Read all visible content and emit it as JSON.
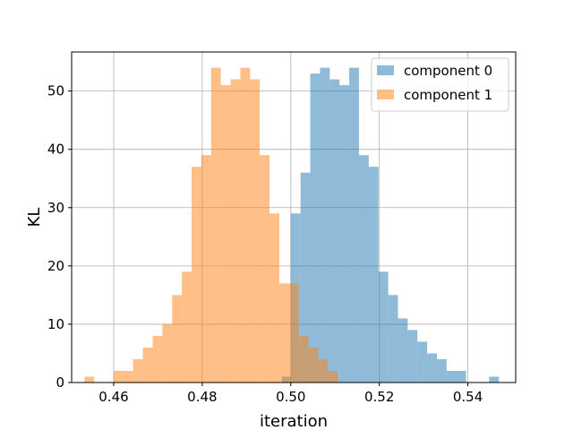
{
  "chart_data": {
    "type": "histogram",
    "xlabel": "iteration",
    "ylabel": "KL",
    "xlim": [
      0.4505,
      0.5508
    ],
    "ylim": [
      0,
      56.7
    ],
    "xticks": [
      0.46,
      0.48,
      0.5,
      0.52,
      0.54
    ],
    "xtick_labels": [
      "0.46",
      "0.48",
      "0.50",
      "0.52",
      "0.54"
    ],
    "yticks": [
      0,
      10,
      20,
      30,
      40,
      50
    ],
    "ytick_labels": [
      "0",
      "10",
      "20",
      "30",
      "40",
      "50"
    ],
    "grid": true,
    "legend_position": "top-right",
    "series": [
      {
        "name": "component 0",
        "color": "#1f77b4",
        "opacity": 0.5,
        "bins": [
          {
            "x0": 0.498,
            "x1": 0.5,
            "count": 1
          },
          {
            "x0": 0.5,
            "x1": 0.5022,
            "count": 29
          },
          {
            "x0": 0.5022,
            "x1": 0.5044,
            "count": 36
          },
          {
            "x0": 0.5044,
            "x1": 0.5066,
            "count": 53
          },
          {
            "x0": 0.5066,
            "x1": 0.5088,
            "count": 54
          },
          {
            "x0": 0.5088,
            "x1": 0.511,
            "count": 52
          },
          {
            "x0": 0.511,
            "x1": 0.5132,
            "count": 51
          },
          {
            "x0": 0.5132,
            "x1": 0.5154,
            "count": 54
          },
          {
            "x0": 0.5154,
            "x1": 0.5176,
            "count": 39
          },
          {
            "x0": 0.5176,
            "x1": 0.5198,
            "count": 37
          },
          {
            "x0": 0.5198,
            "x1": 0.522,
            "count": 19
          },
          {
            "x0": 0.522,
            "x1": 0.5242,
            "count": 15
          },
          {
            "x0": 0.5242,
            "x1": 0.5264,
            "count": 11
          },
          {
            "x0": 0.5264,
            "x1": 0.5286,
            "count": 9
          },
          {
            "x0": 0.5286,
            "x1": 0.5308,
            "count": 7
          },
          {
            "x0": 0.5308,
            "x1": 0.533,
            "count": 5
          },
          {
            "x0": 0.533,
            "x1": 0.5352,
            "count": 4
          },
          {
            "x0": 0.5352,
            "x1": 0.5396,
            "count": 2
          },
          {
            "x0": 0.5448,
            "x1": 0.547,
            "count": 1
          }
        ]
      },
      {
        "name": "component 1",
        "color": "#ff7f0e",
        "opacity": 0.5,
        "bins": [
          {
            "x0": 0.4534,
            "x1": 0.4556,
            "count": 1
          },
          {
            "x0": 0.46,
            "x1": 0.4644,
            "count": 2
          },
          {
            "x0": 0.4644,
            "x1": 0.4666,
            "count": 4
          },
          {
            "x0": 0.4666,
            "x1": 0.4688,
            "count": 6
          },
          {
            "x0": 0.4688,
            "x1": 0.471,
            "count": 8
          },
          {
            "x0": 0.471,
            "x1": 0.4732,
            "count": 10
          },
          {
            "x0": 0.4732,
            "x1": 0.4754,
            "count": 15
          },
          {
            "x0": 0.4754,
            "x1": 0.4776,
            "count": 19
          },
          {
            "x0": 0.4776,
            "x1": 0.4798,
            "count": 37
          },
          {
            "x0": 0.4798,
            "x1": 0.482,
            "count": 39
          },
          {
            "x0": 0.482,
            "x1": 0.4842,
            "count": 54
          },
          {
            "x0": 0.4842,
            "x1": 0.4864,
            "count": 51
          },
          {
            "x0": 0.4864,
            "x1": 0.4886,
            "count": 52
          },
          {
            "x0": 0.4886,
            "x1": 0.4908,
            "count": 54
          },
          {
            "x0": 0.4908,
            "x1": 0.493,
            "count": 52
          },
          {
            "x0": 0.493,
            "x1": 0.4952,
            "count": 39
          },
          {
            "x0": 0.4952,
            "x1": 0.4974,
            "count": 29
          },
          {
            "x0": 0.4974,
            "x1": 0.4996,
            "count": 17
          },
          {
            "x0": 0.4996,
            "x1": 0.5018,
            "count": 17
          },
          {
            "x0": 0.5018,
            "x1": 0.504,
            "count": 8
          },
          {
            "x0": 0.504,
            "x1": 0.5062,
            "count": 6
          },
          {
            "x0": 0.5062,
            "x1": 0.5084,
            "count": 4
          },
          {
            "x0": 0.5084,
            "x1": 0.5106,
            "count": 2
          }
        ]
      }
    ]
  }
}
